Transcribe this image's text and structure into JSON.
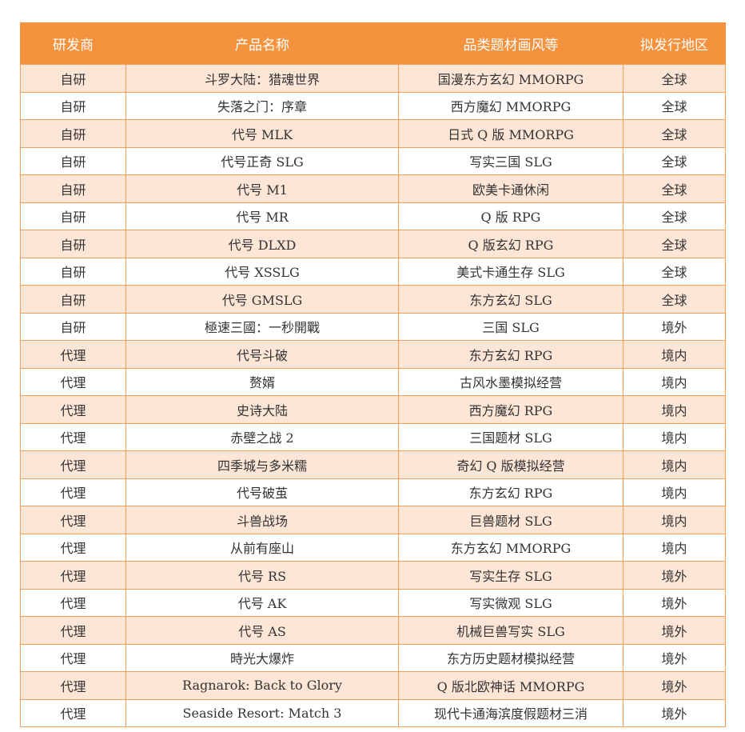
{
  "headers": [
    "研发商",
    "产品名称",
    "品类题材画风等",
    "拟发行地区"
  ],
  "rows": [
    [
      "自研",
      "斗罗大陆：猎魂世界",
      "国漫东方玄幻 MMORPG",
      "全球"
    ],
    [
      "自研",
      "失落之门：序章",
      "西方魔幻 MMORPG",
      "全球"
    ],
    [
      "自研",
      "代号 MLK",
      "日式 Q 版 MMORPG",
      "全球"
    ],
    [
      "自研",
      "代号正奇 SLG",
      "写实三国 SLG",
      "全球"
    ],
    [
      "自研",
      "代号 M1",
      "欧美卡通休闲",
      "全球"
    ],
    [
      "自研",
      "代号 MR",
      "Q 版 RPG",
      "全球"
    ],
    [
      "自研",
      "代号 DLXD",
      "Q 版玄幻 RPG",
      "全球"
    ],
    [
      "自研",
      "代号 XSSLG",
      "美式卡通生存 SLG",
      "全球"
    ],
    [
      "自研",
      "代号 GMSLG",
      "东方玄幻 SLG",
      "全球"
    ],
    [
      "自研",
      "極速三國：一秒開戰",
      "三国 SLG",
      "境外"
    ],
    [
      "代理",
      "代号斗破",
      "东方玄幻 RPG",
      "境内"
    ],
    [
      "代理",
      "赘婿",
      "古风水墨模拟经营",
      "境内"
    ],
    [
      "代理",
      "史诗大陆",
      "西方魔幻 RPG",
      "境内"
    ],
    [
      "代理",
      "赤壁之战 2",
      "三国题材 SLG",
      "境内"
    ],
    [
      "代理",
      "四季城与多米糯",
      "奇幻 Q 版模拟经营",
      "境内"
    ],
    [
      "代理",
      "代号破茧",
      "东方玄幻 RPG",
      "境内"
    ],
    [
      "代理",
      "斗兽战场",
      "巨兽题材 SLG",
      "境内"
    ],
    [
      "代理",
      "从前有座山",
      "东方玄幻 MMORPG",
      "境内"
    ],
    [
      "代理",
      "代号 RS",
      "写实生存 SLG",
      "境外"
    ],
    [
      "代理",
      "代号 AK",
      "写实微观 SLG",
      "境外"
    ],
    [
      "代理",
      "代号 AS",
      "机械巨兽写实 SLG",
      "境外"
    ],
    [
      "代理",
      "時光大爆炸",
      "东方历史题材模拟经营",
      "境外"
    ],
    [
      "代理",
      "Ragnarok: Back to Glory",
      "Q 版北欧神话 MMORPG",
      "境外"
    ],
    [
      "代理",
      "Seaside Resort: Match 3",
      "现代卡通海滨度假题材三消",
      "境外"
    ]
  ],
  "colors": {
    "header_bg": "#f5923e",
    "header_text": "#ffffff",
    "stripe_bg": "#fde6d6",
    "border": "#f5a05a"
  }
}
